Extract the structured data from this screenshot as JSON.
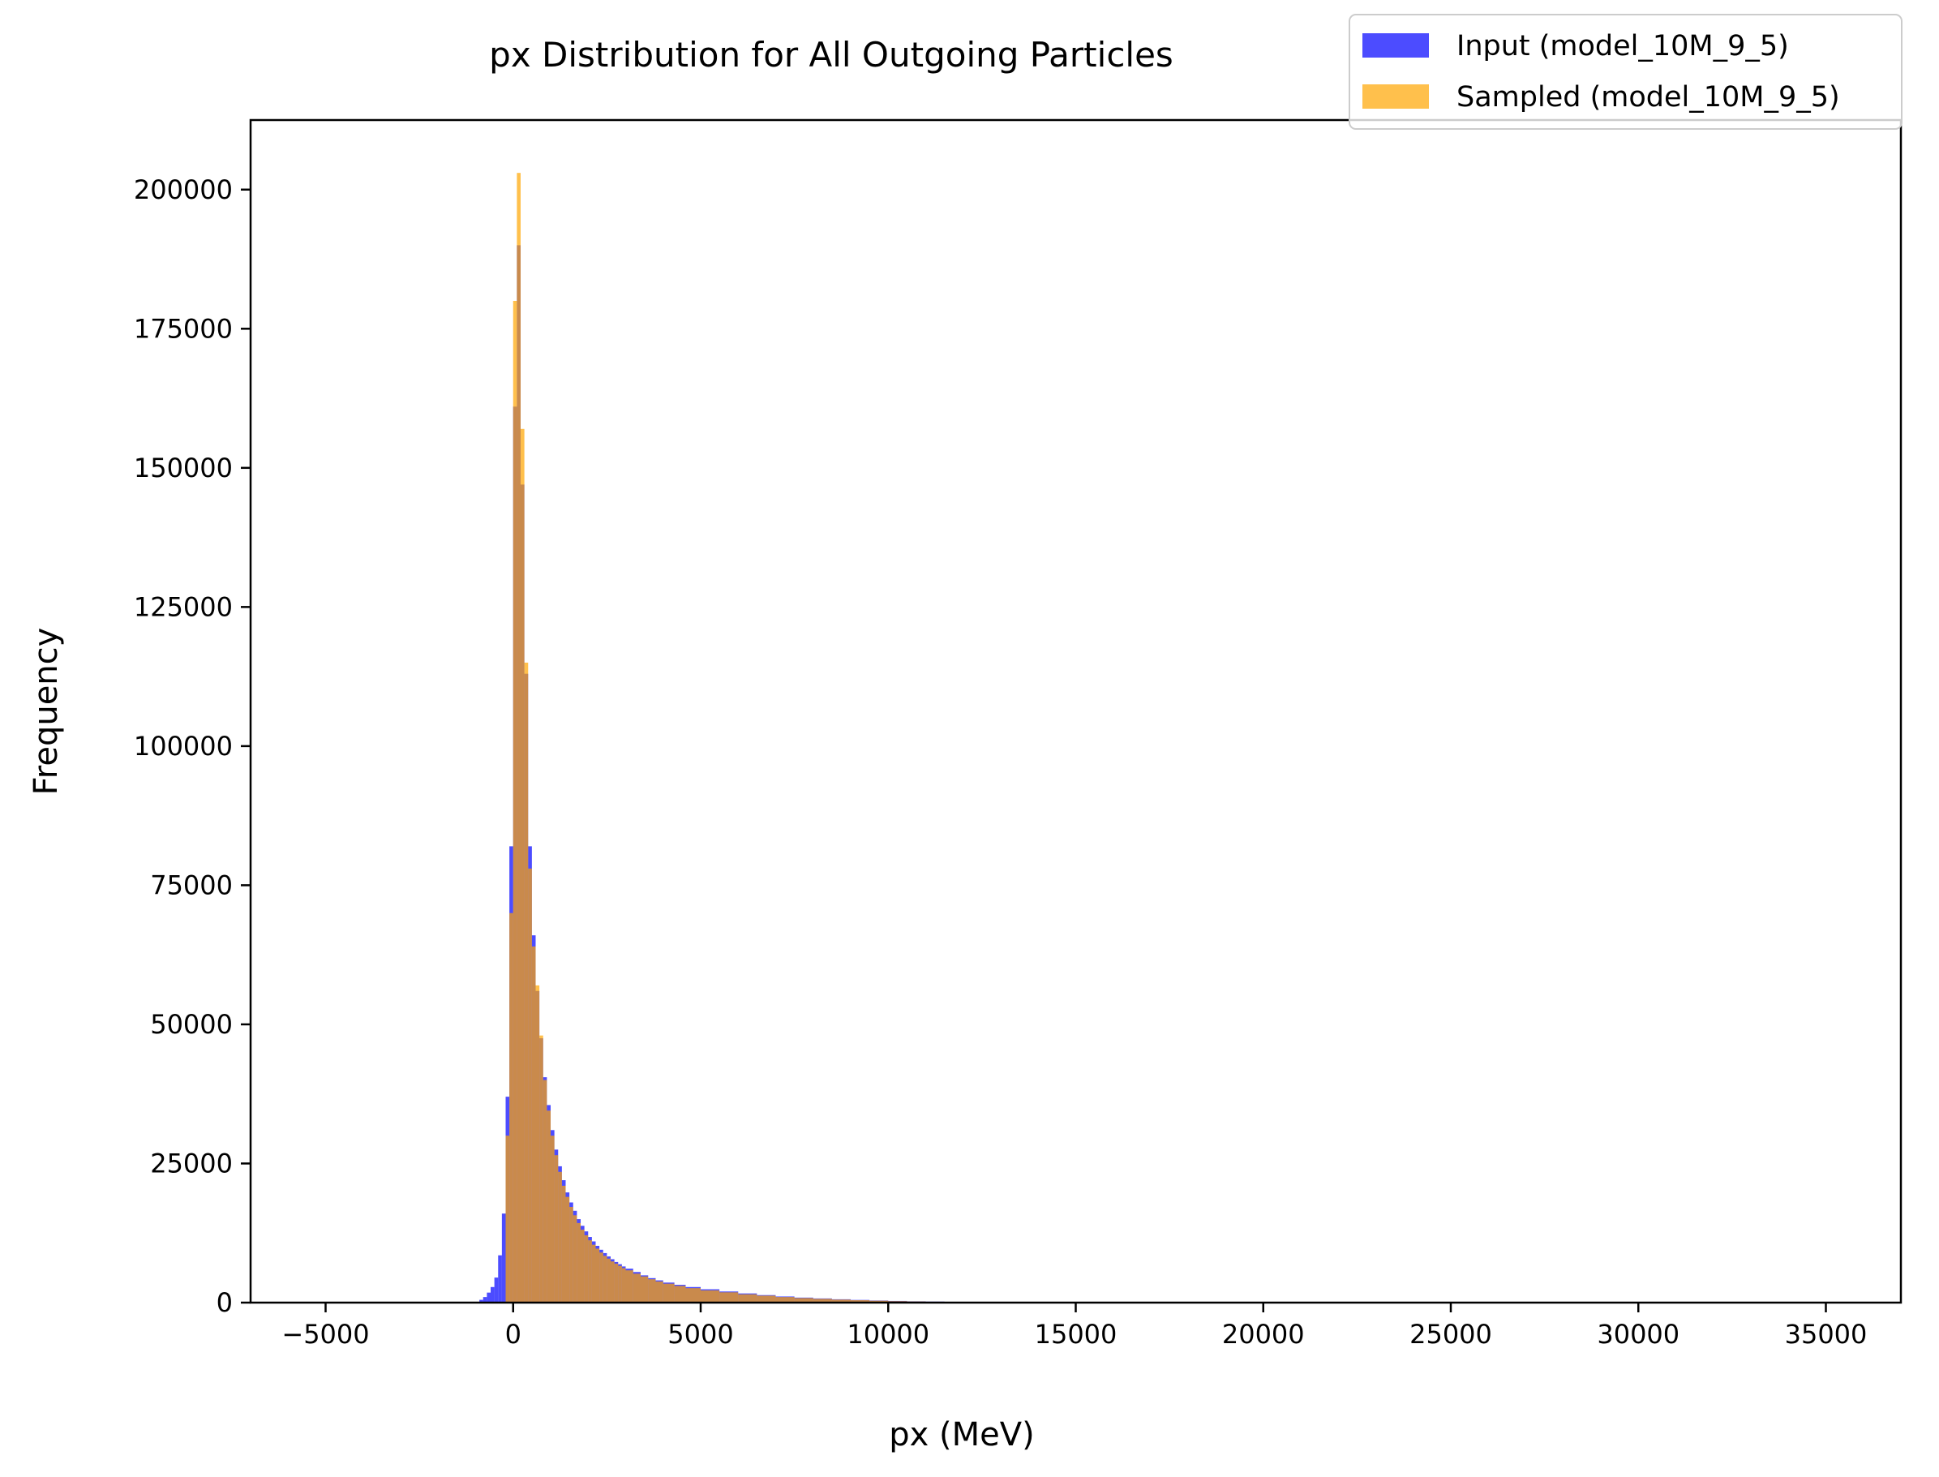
{
  "chart_data": {
    "type": "bar",
    "title": "px Distribution for All Outgoing Particles",
    "xlabel": "px (MeV)",
    "ylabel": "Frequency",
    "xlim": [
      -7000,
      37000
    ],
    "ylim": [
      0,
      212500
    ],
    "x_ticks": [
      -5000,
      0,
      5000,
      10000,
      15000,
      20000,
      25000,
      30000,
      35000
    ],
    "x_tick_labels": [
      "−5000",
      "0",
      "5000",
      "10000",
      "15000",
      "20000",
      "25000",
      "30000",
      "35000"
    ],
    "y_ticks": [
      0,
      25000,
      50000,
      75000,
      100000,
      125000,
      150000,
      175000,
      200000
    ],
    "y_tick_labels": [
      "0",
      "25000",
      "50000",
      "75000",
      "100000",
      "125000",
      "150000",
      "175000",
      "200000"
    ],
    "grid": false,
    "legend_position": "upper-right",
    "bin_width": 100,
    "series": [
      {
        "name": "Input (model_10M_9_5)",
        "color": "#0000ff",
        "alpha": 0.7,
        "bins": [
          [
            -900,
            500
          ],
          [
            -800,
            1000
          ],
          [
            -700,
            1800
          ],
          [
            -600,
            2800
          ],
          [
            -500,
            4500
          ],
          [
            -400,
            8500
          ],
          [
            -300,
            16000
          ],
          [
            -200,
            37000
          ],
          [
            -100,
            82000
          ],
          [
            0,
            161000
          ],
          [
            100,
            190000
          ],
          [
            200,
            147000
          ],
          [
            300,
            113000
          ],
          [
            400,
            82000
          ],
          [
            500,
            66000
          ],
          [
            600,
            56000
          ],
          [
            700,
            47500
          ],
          [
            800,
            40500
          ],
          [
            900,
            35500
          ],
          [
            1000,
            31000
          ],
          [
            1100,
            27500
          ],
          [
            1200,
            24500
          ],
          [
            1300,
            22000
          ],
          [
            1400,
            19800
          ],
          [
            1500,
            18000
          ],
          [
            1600,
            16500
          ],
          [
            1700,
            15000
          ],
          [
            1800,
            13800
          ],
          [
            1900,
            12800
          ],
          [
            2000,
            11800
          ],
          [
            2100,
            11000
          ],
          [
            2200,
            10200
          ],
          [
            2300,
            9500
          ],
          [
            2400,
            8900
          ],
          [
            2500,
            8300
          ],
          [
            2600,
            7800
          ],
          [
            2700,
            7300
          ],
          [
            2800,
            6900
          ],
          [
            2900,
            6500
          ],
          [
            3000,
            6100
          ],
          [
            3200,
            5500
          ],
          [
            3400,
            4900
          ],
          [
            3600,
            4400
          ],
          [
            3800,
            4000
          ],
          [
            4000,
            3600
          ],
          [
            4300,
            3200
          ],
          [
            4600,
            2800
          ],
          [
            5000,
            2400
          ],
          [
            5500,
            2000
          ],
          [
            6000,
            1650
          ],
          [
            6500,
            1350
          ],
          [
            7000,
            1100
          ],
          [
            7500,
            900
          ],
          [
            8000,
            750
          ],
          [
            8500,
            600
          ],
          [
            9000,
            480
          ],
          [
            9500,
            380
          ],
          [
            10000,
            300
          ],
          [
            10500,
            230
          ],
          [
            11000,
            180
          ],
          [
            11500,
            140
          ],
          [
            12000,
            110
          ],
          [
            12500,
            80
          ],
          [
            13000,
            50
          ],
          [
            14000,
            25
          ],
          [
            15000,
            12
          ],
          [
            16000,
            5
          ]
        ]
      },
      {
        "name": "Sampled (model_10M_9_5)",
        "color": "#ffa500",
        "alpha": 0.7,
        "bins": [
          [
            -200,
            30000
          ],
          [
            -100,
            70000
          ],
          [
            0,
            180000
          ],
          [
            100,
            203000
          ],
          [
            200,
            157000
          ],
          [
            300,
            115000
          ],
          [
            400,
            78000
          ],
          [
            500,
            64000
          ],
          [
            600,
            57000
          ],
          [
            700,
            48000
          ],
          [
            800,
            40000
          ],
          [
            900,
            34500
          ],
          [
            1000,
            30000
          ],
          [
            1100,
            26500
          ],
          [
            1200,
            23500
          ],
          [
            1300,
            21000
          ],
          [
            1400,
            19000
          ],
          [
            1500,
            17200
          ],
          [
            1600,
            15700
          ],
          [
            1700,
            14300
          ],
          [
            1800,
            13100
          ],
          [
            1900,
            12100
          ],
          [
            2000,
            11200
          ],
          [
            2100,
            10400
          ],
          [
            2200,
            9700
          ],
          [
            2300,
            9000
          ],
          [
            2400,
            8400
          ],
          [
            2500,
            7900
          ],
          [
            2600,
            7400
          ],
          [
            2700,
            7000
          ],
          [
            2800,
            6600
          ],
          [
            2900,
            6200
          ],
          [
            3000,
            5800
          ],
          [
            3200,
            5200
          ],
          [
            3400,
            4700
          ],
          [
            3600,
            4200
          ],
          [
            3800,
            3800
          ],
          [
            4000,
            3400
          ],
          [
            4300,
            3000
          ],
          [
            4600,
            2600
          ],
          [
            5000,
            2200
          ],
          [
            5500,
            1850
          ],
          [
            6000,
            1500
          ],
          [
            6500,
            1250
          ],
          [
            7000,
            1000
          ],
          [
            7500,
            820
          ],
          [
            8000,
            680
          ],
          [
            8500,
            540
          ],
          [
            9000,
            430
          ],
          [
            9500,
            340
          ],
          [
            10000,
            260
          ],
          [
            10500,
            200
          ],
          [
            11000,
            150
          ],
          [
            11500,
            110
          ],
          [
            12000,
            80
          ],
          [
            12500,
            55
          ],
          [
            13000,
            35
          ],
          [
            14000,
            15
          ]
        ]
      }
    ]
  }
}
